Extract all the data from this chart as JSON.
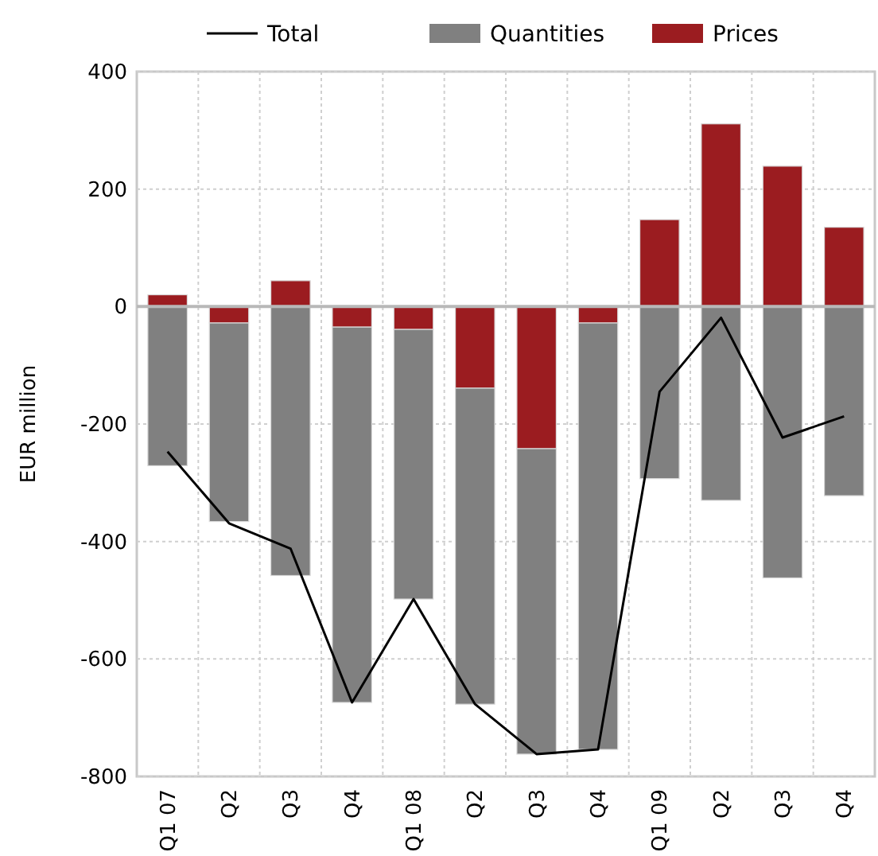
{
  "chart_data": {
    "type": "bar",
    "stacked": true,
    "ylabel": "EUR million",
    "categories": [
      "Q1 07",
      "Q2",
      "Q3",
      "Q4",
      "Q1 08",
      "Q2",
      "Q3",
      "Q4",
      "Q1 09",
      "Q2",
      "Q3",
      "Q4"
    ],
    "series": [
      {
        "name": "Prices",
        "color": "#9b1c20",
        "values": [
          20,
          -28,
          44,
          -35,
          -39,
          -139,
          -242,
          -28,
          148,
          311,
          239,
          135
        ]
      },
      {
        "name": "Quantities",
        "color": "#808080",
        "values": [
          -271,
          -338,
          -458,
          -639,
          -459,
          -538,
          -520,
          -726,
          -293,
          -330,
          -462,
          -322
        ]
      },
      {
        "name": "Total",
        "type": "line",
        "color": "#000000",
        "values": [
          -247,
          -369,
          -412,
          -674,
          -498,
          -677,
          -762,
          -754,
          -145,
          -19,
          -223,
          -187
        ]
      }
    ],
    "ylim": [
      -800,
      400
    ],
    "yticks": [
      -800,
      -600,
      -400,
      -200,
      0,
      200,
      400
    ],
    "grid": true,
    "legend": "top"
  }
}
